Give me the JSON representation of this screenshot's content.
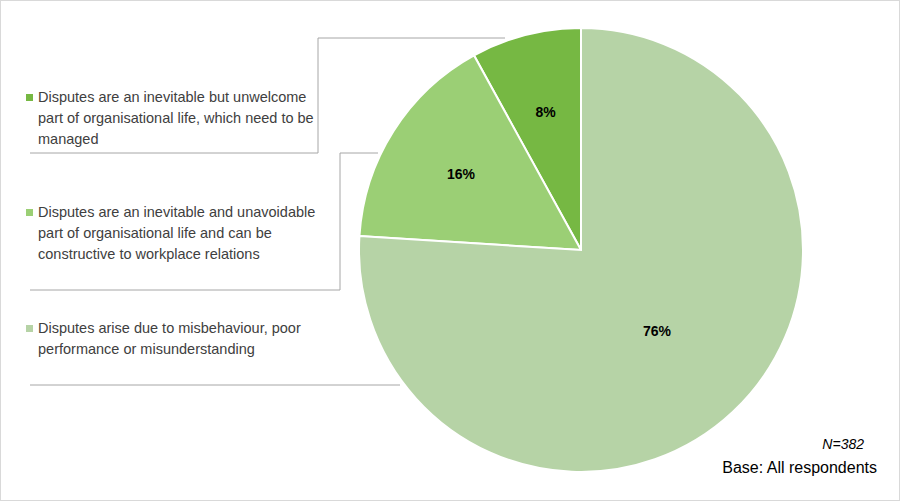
{
  "chart_data": {
    "type": "pie",
    "categories": [
      "Disputes are an inevitable but unwelcome part of organisational life, which need to be managed",
      "Disputes are an inevitable and unavoidable part of organisational life and can be constructive to workplace relations",
      "Disputes arise due to misbehaviour, poor performance or misunderstanding"
    ],
    "values": [
      8,
      16,
      76
    ],
    "value_labels": [
      "8%",
      "16%",
      "76%"
    ],
    "colors": [
      "#76b843",
      "#9bcf75",
      "#b6d3a6"
    ],
    "data_labels": true,
    "annotations": [
      "N=382",
      "Base: All respondents"
    ]
  }
}
